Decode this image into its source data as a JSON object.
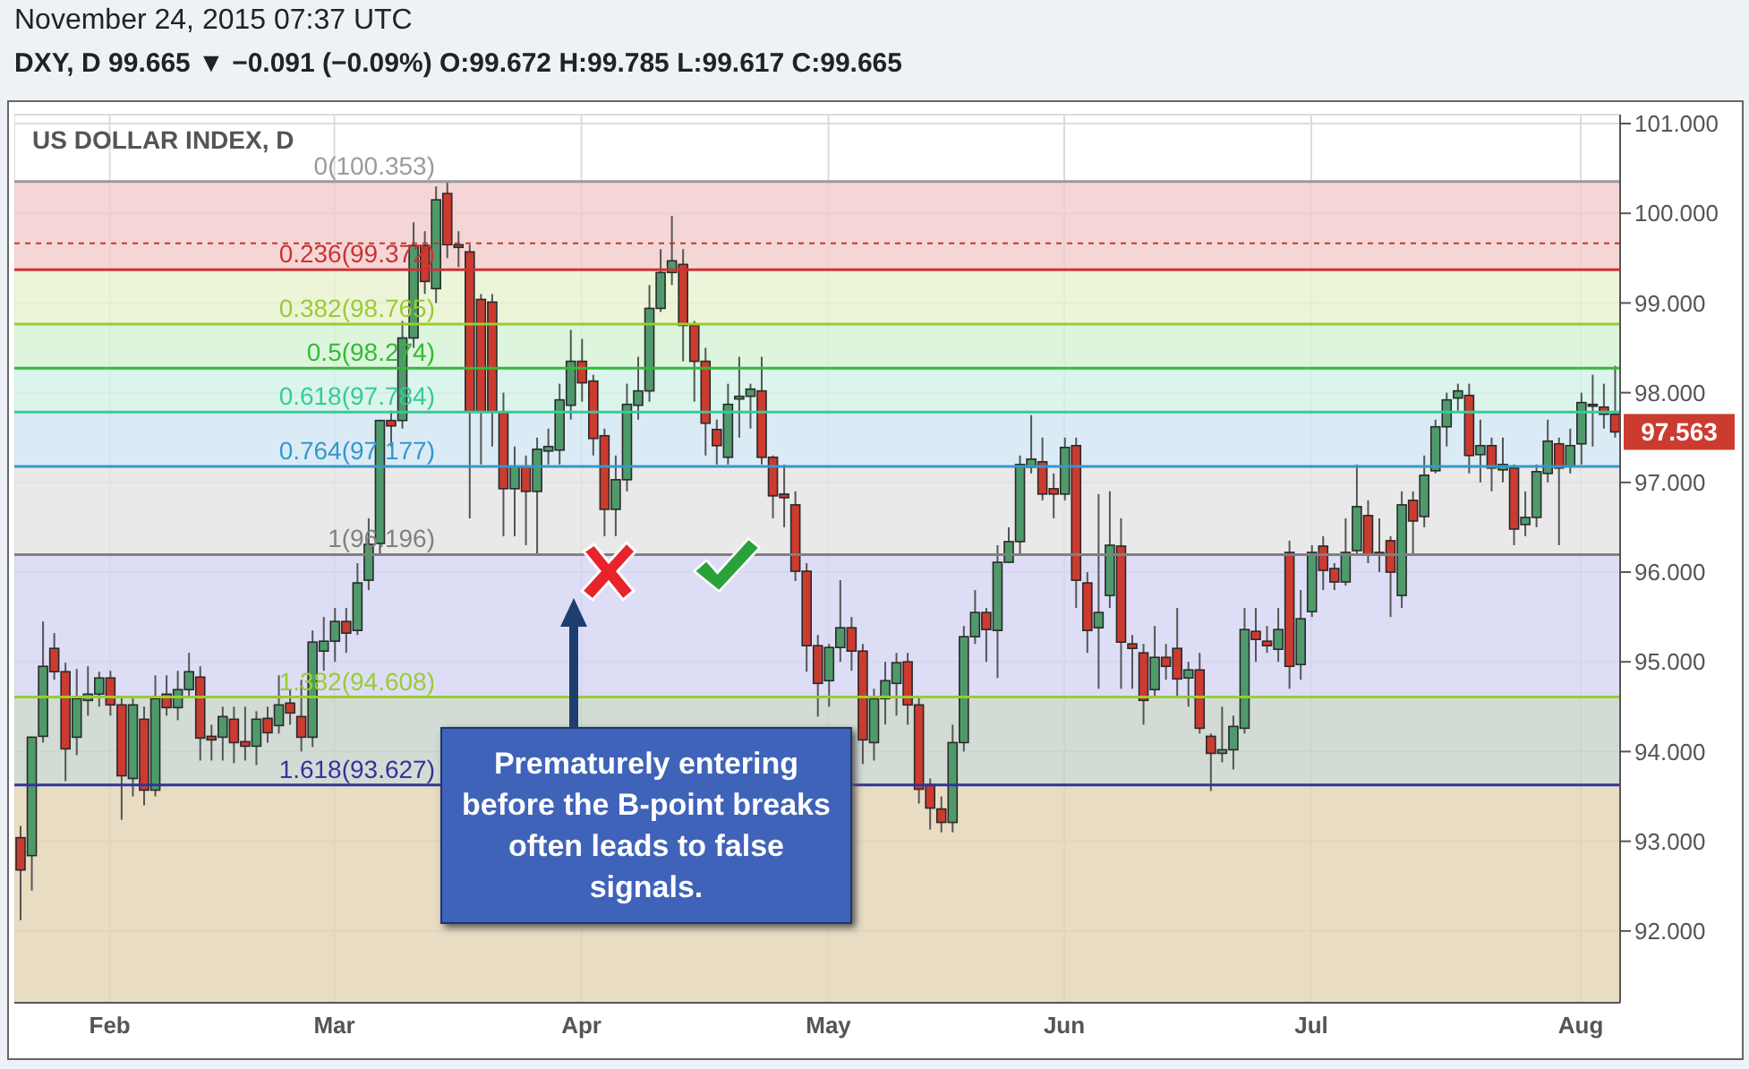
{
  "chart_data": {
    "type": "candlestick",
    "title": "US DOLLAR INDEX, D",
    "annotations": [
      "November 24, 2015 07:37 UTC",
      "DXY, D 99.665 ▼ −0.091 (−0.09%) O:99.672 H:99.785 L:99.617 C:99.665",
      "Prematurely entering before the B-point breaks often leads to false signals.",
      "97.563"
    ],
    "categories": [
      null,
      null,
      null,
      null,
      null,
      null,
      null,
      null,
      "Feb",
      null,
      null,
      null,
      null,
      null,
      null,
      null,
      null,
      null,
      null,
      null,
      null,
      null,
      null,
      null,
      null,
      null,
      null,
      null,
      "Mar",
      null,
      null,
      null,
      null,
      null,
      null,
      null,
      null,
      null,
      null,
      null,
      null,
      null,
      null,
      null,
      null,
      null,
      null,
      null,
      null,
      null,
      "Apr",
      null,
      null,
      null,
      null,
      null,
      null,
      null,
      null,
      null,
      null,
      null,
      null,
      null,
      null,
      null,
      null,
      null,
      null,
      null,
      null,
      null,
      "May",
      null,
      null,
      null,
      null,
      null,
      null,
      null,
      null,
      null,
      null,
      null,
      null,
      null,
      null,
      null,
      null,
      null,
      null,
      null,
      null,
      "Jun",
      null,
      null,
      null,
      null,
      null,
      null,
      null,
      null,
      null,
      null,
      null,
      null,
      null,
      null,
      null,
      null,
      null,
      null,
      null,
      null,
      null,
      "Jul",
      null,
      null,
      null,
      null,
      null,
      null,
      null,
      null,
      null,
      null,
      null,
      null,
      null,
      null,
      null,
      null,
      null,
      null,
      null,
      null,
      null,
      null,
      null,
      "Aug",
      null,
      null,
      null
    ],
    "ohlc": [
      [
        93.04,
        93.17,
        92.12,
        92.68
      ],
      [
        92.84,
        94.16,
        92.45,
        94.16
      ],
      [
        94.17,
        95.45,
        94.1,
        94.95
      ],
      [
        95.15,
        95.32,
        94.8,
        94.89
      ],
      [
        94.89,
        94.99,
        93.67,
        94.03
      ],
      [
        94.16,
        94.92,
        93.96,
        94.59
      ],
      [
        94.57,
        94.95,
        94.4,
        94.64
      ],
      [
        94.64,
        94.89,
        94.5,
        94.82
      ],
      [
        94.82,
        94.9,
        94.4,
        94.52
      ],
      [
        94.52,
        94.6,
        93.24,
        93.73
      ],
      [
        93.7,
        94.6,
        93.5,
        94.52
      ],
      [
        94.36,
        94.5,
        93.4,
        93.57
      ],
      [
        93.57,
        94.85,
        93.5,
        94.59
      ],
      [
        94.64,
        94.85,
        94.4,
        94.49
      ],
      [
        94.49,
        94.9,
        94.35,
        94.69
      ],
      [
        94.69,
        95.1,
        94.6,
        94.89
      ],
      [
        94.83,
        94.95,
        93.9,
        94.15
      ],
      [
        94.17,
        94.3,
        93.9,
        94.13
      ],
      [
        94.16,
        94.5,
        93.9,
        94.39
      ],
      [
        94.36,
        94.5,
        93.87,
        94.1
      ],
      [
        94.11,
        94.5,
        93.9,
        94.06
      ],
      [
        94.06,
        94.45,
        93.85,
        94.36
      ],
      [
        94.37,
        94.5,
        94.1,
        94.21
      ],
      [
        94.29,
        94.85,
        94.2,
        94.52
      ],
      [
        94.54,
        94.7,
        94.3,
        94.43
      ],
      [
        94.39,
        94.8,
        94.0,
        94.16
      ],
      [
        94.16,
        95.35,
        94.05,
        95.22
      ],
      [
        95.12,
        95.5,
        94.9,
        95.23
      ],
      [
        95.23,
        95.6,
        95.0,
        95.45
      ],
      [
        95.45,
        95.6,
        95.1,
        95.32
      ],
      [
        95.35,
        96.1,
        95.3,
        95.88
      ],
      [
        95.91,
        96.6,
        95.8,
        96.31
      ],
      [
        96.32,
        97.7,
        96.2,
        97.69
      ],
      [
        97.69,
        97.8,
        97.4,
        97.63
      ],
      [
        97.69,
        98.8,
        97.6,
        98.61
      ],
      [
        98.61,
        99.9,
        98.5,
        99.64
      ],
      [
        99.64,
        99.8,
        99.1,
        99.24
      ],
      [
        99.16,
        100.3,
        99.0,
        100.15
      ],
      [
        100.22,
        100.35,
        99.5,
        99.65
      ],
      [
        99.65,
        99.8,
        99.4,
        99.62
      ],
      [
        99.57,
        99.65,
        96.6,
        97.79
      ],
      [
        99.04,
        99.1,
        97.2,
        97.79
      ],
      [
        99.01,
        99.1,
        97.4,
        97.79
      ],
      [
        97.78,
        98.0,
        96.4,
        96.93
      ],
      [
        96.93,
        97.4,
        96.4,
        97.18
      ],
      [
        97.18,
        97.3,
        96.3,
        96.9
      ],
      [
        96.9,
        97.5,
        96.2,
        97.37
      ],
      [
        97.35,
        97.6,
        97.2,
        97.4
      ],
      [
        97.36,
        98.1,
        97.2,
        97.92
      ],
      [
        97.86,
        98.7,
        97.7,
        98.35
      ],
      [
        98.35,
        98.6,
        97.9,
        98.11
      ],
      [
        98.13,
        98.2,
        97.3,
        97.49
      ],
      [
        97.52,
        97.6,
        96.4,
        96.7
      ],
      [
        96.7,
        97.3,
        96.4,
        97.03
      ],
      [
        97.03,
        98.1,
        96.9,
        97.87
      ],
      [
        97.86,
        98.4,
        97.7,
        98.02
      ],
      [
        98.02,
        99.2,
        97.9,
        98.94
      ],
      [
        98.94,
        99.6,
        98.9,
        99.34
      ],
      [
        99.34,
        99.97,
        99.2,
        99.47
      ],
      [
        99.43,
        99.6,
        98.35,
        98.75
      ],
      [
        98.75,
        98.8,
        97.9,
        98.35
      ],
      [
        98.35,
        98.5,
        97.3,
        97.66
      ],
      [
        97.59,
        97.7,
        97.2,
        97.41
      ],
      [
        97.28,
        98.1,
        97.2,
        97.87
      ],
      [
        97.93,
        98.4,
        97.5,
        97.96
      ],
      [
        97.96,
        98.1,
        97.6,
        98.04
      ],
      [
        98.02,
        98.4,
        97.2,
        97.28
      ],
      [
        97.28,
        97.3,
        96.6,
        96.85
      ],
      [
        96.87,
        97.2,
        96.5,
        96.83
      ],
      [
        96.75,
        96.9,
        95.9,
        96.01
      ],
      [
        96.01,
        96.1,
        94.89,
        95.18
      ],
      [
        95.18,
        95.3,
        94.39,
        94.76
      ],
      [
        94.79,
        95.2,
        94.5,
        95.16
      ],
      [
        95.16,
        95.91,
        95.0,
        95.38
      ],
      [
        95.38,
        95.5,
        94.9,
        95.12
      ],
      [
        95.12,
        95.2,
        93.86,
        94.13
      ],
      [
        94.1,
        94.7,
        93.9,
        94.59
      ],
      [
        94.59,
        95.0,
        94.3,
        94.79
      ],
      [
        94.76,
        95.1,
        94.4,
        94.99
      ],
      [
        95.0,
        95.1,
        94.3,
        94.52
      ],
      [
        94.52,
        94.6,
        93.42,
        93.58
      ],
      [
        93.63,
        93.7,
        93.13,
        93.37
      ],
      [
        93.36,
        93.5,
        93.1,
        93.21
      ],
      [
        93.21,
        94.3,
        93.1,
        94.1
      ],
      [
        94.1,
        95.4,
        94.0,
        95.28
      ],
      [
        95.28,
        95.8,
        95.2,
        95.55
      ],
      [
        95.55,
        95.6,
        95.0,
        95.36
      ],
      [
        95.35,
        96.3,
        94.82,
        96.11
      ],
      [
        96.11,
        96.5,
        96.1,
        96.34
      ],
      [
        96.34,
        97.3,
        96.2,
        97.2
      ],
      [
        97.17,
        97.75,
        97.1,
        97.26
      ],
      [
        97.23,
        97.5,
        96.8,
        96.87
      ],
      [
        96.93,
        97.1,
        96.6,
        96.87
      ],
      [
        96.87,
        97.5,
        96.8,
        97.39
      ],
      [
        97.41,
        97.5,
        95.6,
        95.91
      ],
      [
        95.88,
        96.0,
        95.1,
        95.35
      ],
      [
        95.38,
        96.87,
        94.7,
        95.55
      ],
      [
        95.74,
        96.9,
        95.6,
        96.3
      ],
      [
        96.29,
        96.6,
        94.7,
        95.22
      ],
      [
        95.2,
        95.3,
        94.7,
        95.15
      ],
      [
        95.1,
        95.2,
        94.3,
        94.57
      ],
      [
        94.69,
        95.4,
        94.6,
        95.05
      ],
      [
        95.05,
        95.2,
        94.8,
        94.95
      ],
      [
        95.15,
        95.6,
        94.6,
        94.81
      ],
      [
        94.82,
        95.0,
        94.5,
        94.91
      ],
      [
        94.91,
        95.1,
        94.2,
        94.26
      ],
      [
        94.17,
        94.2,
        93.56,
        93.98
      ],
      [
        93.98,
        94.5,
        93.88,
        94.02
      ],
      [
        94.02,
        94.4,
        93.8,
        94.28
      ],
      [
        94.26,
        95.6,
        94.2,
        95.36
      ],
      [
        95.34,
        95.6,
        95.0,
        95.25
      ],
      [
        95.23,
        95.4,
        95.1,
        95.18
      ],
      [
        95.14,
        95.6,
        95.0,
        95.36
      ],
      [
        96.22,
        96.35,
        94.7,
        94.95
      ],
      [
        94.97,
        95.8,
        94.8,
        95.48
      ],
      [
        95.56,
        96.3,
        95.5,
        96.22
      ],
      [
        96.29,
        96.4,
        95.8,
        96.02
      ],
      [
        96.04,
        96.1,
        95.8,
        95.89
      ],
      [
        95.89,
        96.6,
        95.85,
        96.22
      ],
      [
        96.24,
        97.2,
        96.2,
        96.73
      ],
      [
        96.63,
        96.8,
        96.1,
        96.19
      ],
      [
        96.22,
        96.6,
        96.0,
        96.19
      ],
      [
        96.35,
        96.4,
        95.5,
        96.0
      ],
      [
        95.74,
        96.9,
        95.6,
        96.75
      ],
      [
        96.8,
        96.9,
        96.2,
        96.57
      ],
      [
        96.62,
        97.3,
        96.5,
        97.08
      ],
      [
        97.13,
        97.7,
        97.1,
        97.62
      ],
      [
        97.62,
        98.0,
        97.4,
        97.92
      ],
      [
        97.94,
        98.1,
        97.8,
        98.02
      ],
      [
        97.97,
        98.1,
        97.1,
        97.3
      ],
      [
        97.31,
        97.7,
        97.0,
        97.41
      ],
      [
        97.41,
        97.5,
        96.9,
        97.16
      ],
      [
        97.14,
        97.5,
        97.0,
        97.2
      ],
      [
        97.16,
        97.2,
        96.3,
        96.48
      ],
      [
        96.53,
        96.9,
        96.4,
        96.61
      ],
      [
        96.61,
        97.2,
        96.5,
        97.12
      ],
      [
        97.1,
        97.7,
        97.0,
        97.46
      ],
      [
        97.43,
        97.5,
        96.3,
        97.16
      ],
      [
        97.18,
        97.6,
        97.1,
        97.41
      ],
      [
        97.43,
        98.0,
        97.2,
        97.89
      ],
      [
        97.87,
        98.2,
        97.4,
        97.86
      ],
      [
        97.84,
        98.1,
        97.6,
        97.76
      ],
      [
        97.76,
        98.3,
        97.5,
        97.563
      ]
    ],
    "colors": [
      "#cc3b2f",
      "#4f9a6b",
      "#4f9a6b",
      "#cc3b2f",
      "#cc3b2f",
      "#4f9a6b",
      "#4f9a6b",
      "#4f9a6b",
      "#cc3b2f",
      "#cc3b2f",
      "#4f9a6b",
      "#cc3b2f",
      "#4f9a6b",
      "#cc3b2f",
      "#4f9a6b",
      "#4f9a6b",
      "#cc3b2f",
      "#cc3b2f",
      "#4f9a6b",
      "#cc3b2f",
      "#cc3b2f",
      "#4f9a6b",
      "#cc3b2f",
      "#4f9a6b",
      "#cc3b2f",
      "#cc3b2f",
      "#4f9a6b",
      "#4f9a6b",
      "#4f9a6b",
      "#cc3b2f",
      "#4f9a6b",
      "#4f9a6b",
      "#4f9a6b",
      "#cc3b2f",
      "#4f9a6b",
      "#4f9a6b",
      "#cc3b2f",
      "#4f9a6b",
      "#cc3b2f",
      "#cc3b2f",
      "#cc3b2f",
      "#cc3b2f",
      "#cc3b2f",
      "#cc3b2f",
      "#4f9a6b",
      "#cc3b2f",
      "#4f9a6b",
      "#4f9a6b",
      "#4f9a6b",
      "#4f9a6b",
      "#cc3b2f",
      "#cc3b2f",
      "#cc3b2f",
      "#4f9a6b",
      "#4f9a6b",
      "#4f9a6b",
      "#4f9a6b",
      "#4f9a6b",
      "#4f9a6b",
      "#cc3b2f",
      "#cc3b2f",
      "#cc3b2f",
      "#cc3b2f",
      "#4f9a6b",
      "#4f9a6b",
      "#4f9a6b",
      "#cc3b2f",
      "#cc3b2f",
      "#cc3b2f",
      "#cc3b2f",
      "#cc3b2f",
      "#cc3b2f",
      "#4f9a6b",
      "#4f9a6b",
      "#cc3b2f",
      "#cc3b2f",
      "#4f9a6b",
      "#4f9a6b",
      "#4f9a6b",
      "#cc3b2f",
      "#cc3b2f",
      "#cc3b2f",
      "#cc3b2f",
      "#4f9a6b",
      "#4f9a6b",
      "#4f9a6b",
      "#cc3b2f",
      "#4f9a6b",
      "#4f9a6b",
      "#4f9a6b",
      "#4f9a6b",
      "#cc3b2f",
      "#cc3b2f",
      "#4f9a6b",
      "#cc3b2f",
      "#cc3b2f",
      "#4f9a6b",
      "#4f9a6b",
      "#cc3b2f",
      "#cc3b2f",
      "#cc3b2f",
      "#4f9a6b",
      "#cc3b2f",
      "#cc3b2f",
      "#4f9a6b",
      "#cc3b2f",
      "#cc3b2f",
      "#4f9a6b",
      "#4f9a6b",
      "#4f9a6b",
      "#cc3b2f",
      "#cc3b2f",
      "#4f9a6b",
      "#cc3b2f",
      "#4f9a6b",
      "#4f9a6b",
      "#cc3b2f",
      "#cc3b2f",
      "#4f9a6b",
      "#4f9a6b",
      "#cc3b2f",
      "#cc3b2f",
      "#cc3b2f",
      "#4f9a6b",
      "#cc3b2f",
      "#4f9a6b",
      "#4f9a6b",
      "#4f9a6b",
      "#4f9a6b",
      "#cc3b2f",
      "#4f9a6b",
      "#cc3b2f",
      "#4f9a6b",
      "#cc3b2f",
      "#4f9a6b",
      "#4f9a6b",
      "#4f9a6b",
      "#cc3b2f",
      "#4f9a6b",
      "#4f9a6b",
      "#cc3b2f",
      "#cc3b2f",
      "#cc3b2f"
    ],
    "ylim": [
      91.2,
      101.1
    ],
    "yticks": [
      {
        "value": 92,
        "label": "92.000"
      },
      {
        "value": 93,
        "label": "93.000"
      },
      {
        "value": 94,
        "label": "94.000"
      },
      {
        "value": 95,
        "label": "95.000"
      },
      {
        "value": 96,
        "label": "96.000"
      },
      {
        "value": 97,
        "label": "97.000"
      },
      {
        "value": 98,
        "label": "98.000"
      },
      {
        "value": 99,
        "label": "99.000"
      },
      {
        "value": 100,
        "label": "100.000"
      },
      {
        "value": 101,
        "label": "101.000"
      }
    ],
    "grid": true,
    "bands": [
      {
        "axis": "y",
        "from": 99.372,
        "to": 100.353,
        "color": "#f2cccc"
      },
      {
        "axis": "y",
        "from": 98.765,
        "to": 99.372,
        "color": "#e8f2d0"
      },
      {
        "axis": "y",
        "from": 98.274,
        "to": 98.765,
        "color": "#d4f2d4"
      },
      {
        "axis": "y",
        "from": 97.784,
        "to": 98.274,
        "color": "#d2f2e8"
      },
      {
        "axis": "y",
        "from": 97.177,
        "to": 97.784,
        "color": "#d2e6f2"
      },
      {
        "axis": "y",
        "from": 96.196,
        "to": 97.177,
        "color": "#e4e4e4"
      },
      {
        "axis": "y",
        "from": 94.608,
        "to": 96.196,
        "color": "#d4d4f4"
      },
      {
        "axis": "y",
        "from": 93.627,
        "to": 94.608,
        "color": "#c8d2ca"
      },
      {
        "axis": "y",
        "from": 91.2,
        "to": 93.627,
        "color": "#e2d3b4"
      }
    ],
    "ref_lines": [
      {
        "axis": "y",
        "value": 100.353,
        "label": "0(100.353)",
        "color": "#9a9a9a"
      },
      {
        "axis": "y",
        "value": 99.372,
        "label": "0.236(99.372)",
        "color": "#cc3333"
      },
      {
        "axis": "y",
        "value": 98.765,
        "label": "0.382(98.765)",
        "color": "#99cc33"
      },
      {
        "axis": "y",
        "value": 98.274,
        "label": "0.5(98.274)",
        "color": "#33bb33"
      },
      {
        "axis": "y",
        "value": 97.784,
        "label": "0.618(97.784)",
        "color": "#33cc99"
      },
      {
        "axis": "y",
        "value": 97.177,
        "label": "0.764(97.177)",
        "color": "#3399cc"
      },
      {
        "axis": "y",
        "value": 96.196,
        "label": "1(96.196)",
        "color": "#808080"
      },
      {
        "axis": "y",
        "value": 94.608,
        "label": "1.382(94.608)",
        "color": "#99cc33"
      },
      {
        "axis": "y",
        "value": 93.627,
        "label": "1.618(93.627)",
        "color": "#333399"
      },
      {
        "axis": "y",
        "value": 99.665,
        "color": "#cc3333",
        "line_style": "dashed"
      }
    ]
  }
}
